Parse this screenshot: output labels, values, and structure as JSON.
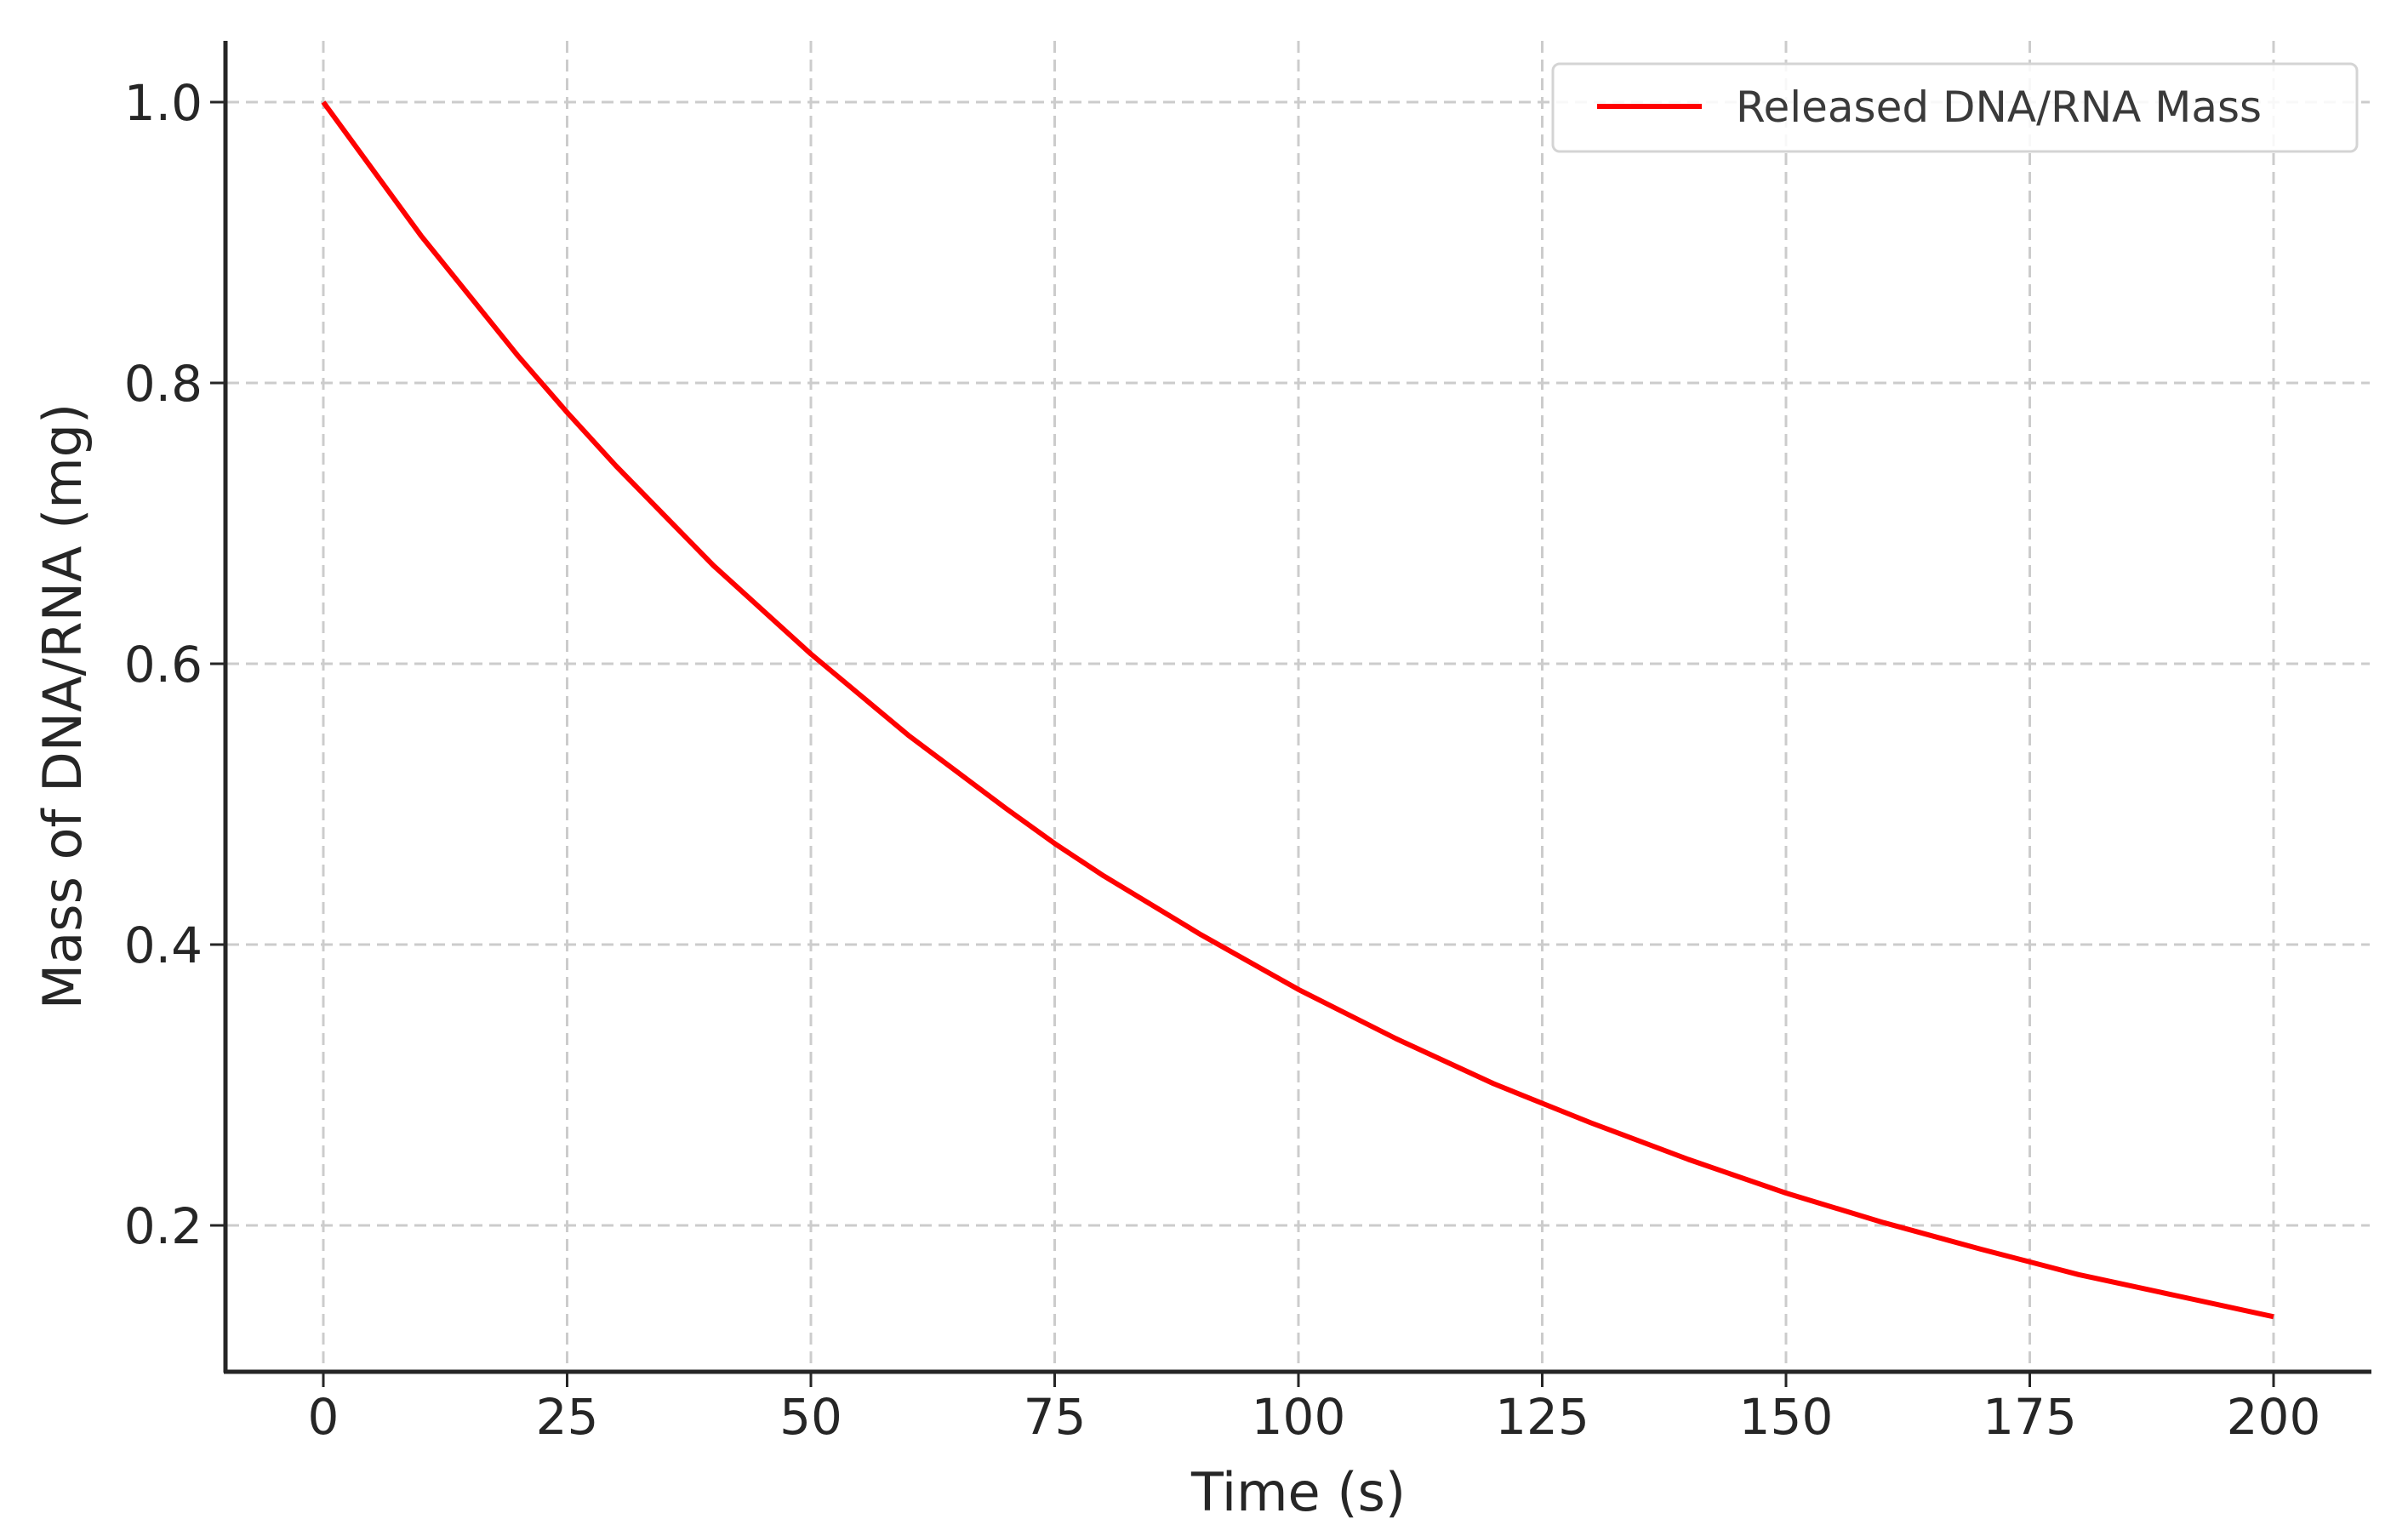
{
  "chart_data": {
    "type": "line",
    "title": "",
    "xlabel": "Time (s)",
    "ylabel": "Mass of DNA/RNA (mg)",
    "xlim": [
      -10,
      210
    ],
    "ylim": [
      0.09,
      1.045
    ],
    "x_ticks": [
      0,
      25,
      50,
      75,
      100,
      125,
      150,
      175,
      200
    ],
    "x_tick_labels": [
      "0",
      "25",
      "50",
      "75",
      "100",
      "125",
      "150",
      "175",
      "200"
    ],
    "y_ticks": [
      0.2,
      0.4,
      0.6,
      0.8,
      1.0
    ],
    "y_tick_labels": [
      "0.2",
      "0.4",
      "0.6",
      "0.8",
      "1.0"
    ],
    "grid": true,
    "legend_position": "upper right",
    "series": [
      {
        "name": "Released DNA/RNA Mass",
        "color": "#ff0000",
        "x": [
          0,
          10,
          20,
          25,
          30,
          40,
          50,
          60,
          70,
          75,
          80,
          90,
          100,
          110,
          120,
          125,
          130,
          140,
          150,
          160,
          170,
          175,
          180,
          190,
          200
        ],
        "values": [
          1.0,
          0.905,
          0.819,
          0.779,
          0.741,
          0.67,
          0.607,
          0.549,
          0.497,
          0.472,
          0.449,
          0.407,
          0.368,
          0.333,
          0.301,
          0.287,
          0.273,
          0.247,
          0.223,
          0.202,
          0.183,
          0.174,
          0.165,
          0.15,
          0.135
        ]
      }
    ]
  },
  "legend": {
    "items": [
      {
        "label": "Released DNA/RNA Mass",
        "color": "#ff0000"
      }
    ]
  }
}
